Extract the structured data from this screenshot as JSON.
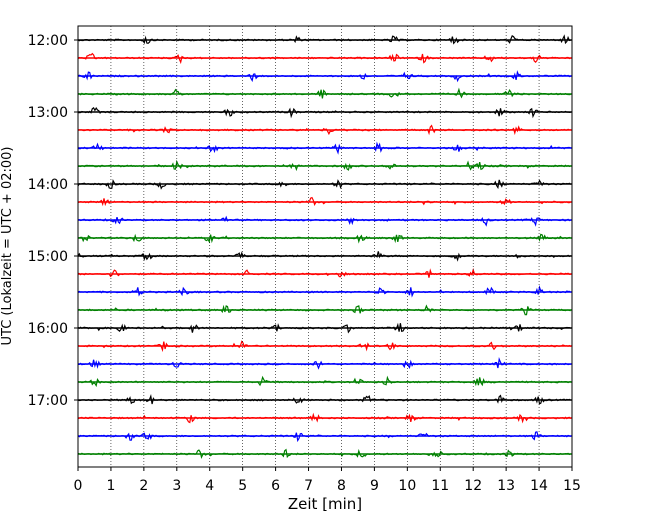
{
  "chart_data": {
    "type": "line",
    "title": "",
    "xlabel": "Zeit  [min]",
    "ylabel": "UTC (Lokalzeit = UTC + 02:00)",
    "xlim": [
      0,
      15
    ],
    "x_ticks": [
      "0",
      "1",
      "2",
      "3",
      "4",
      "5",
      "6",
      "7",
      "8",
      "9",
      "10",
      "11",
      "12",
      "13",
      "14",
      "15"
    ],
    "y_ticks": [
      "12:00",
      "13:00",
      "14:00",
      "15:00",
      "16:00",
      "17:00"
    ],
    "trace_interval_min": 15,
    "trace_start": "12:00",
    "trace_count": 24,
    "trace_colors": [
      "#000000",
      "#ff0000",
      "#0000ff",
      "#008000"
    ],
    "grid": "vertical dotted",
    "events": [
      {
        "trace": 0,
        "minutes": [
          2.1,
          6.6,
          9.6,
          11.4,
          13.2,
          14.8
        ]
      },
      {
        "trace": 1,
        "minutes": [
          0.4,
          3.1,
          9.6,
          10.5,
          12.5,
          13.9
        ]
      },
      {
        "trace": 2,
        "minutes": [
          0.3,
          5.3,
          8.6,
          10.0,
          11.5,
          13.3
        ]
      },
      {
        "trace": 3,
        "minutes": [
          3.0,
          7.4,
          9.6,
          11.6,
          13.1
        ]
      },
      {
        "trace": 4,
        "minutes": [
          0.5,
          4.6,
          6.5,
          12.8,
          13.8
        ]
      },
      {
        "trace": 5,
        "minutes": [
          2.7,
          7.6,
          10.7,
          13.3
        ]
      },
      {
        "trace": 6,
        "minutes": [
          0.6,
          4.1,
          7.9,
          9.1,
          11.5
        ]
      },
      {
        "trace": 7,
        "minutes": [
          3.0,
          6.6,
          8.2,
          9.5,
          11.9,
          12.2
        ]
      },
      {
        "trace": 8,
        "minutes": [
          1.0,
          2.5,
          6.2,
          7.9,
          12.8,
          14.0
        ]
      },
      {
        "trace": 9,
        "minutes": [
          0.8,
          7.1,
          10.6,
          13.0
        ]
      },
      {
        "trace": 10,
        "minutes": [
          1.2,
          4.4,
          8.3,
          12.4,
          13.9
        ]
      },
      {
        "trace": 11,
        "minutes": [
          0.2,
          1.8,
          4.0,
          8.6,
          9.7,
          14.1
        ]
      },
      {
        "trace": 12,
        "minutes": [
          2.1,
          4.9,
          9.1,
          11.5,
          13.4
        ]
      },
      {
        "trace": 13,
        "minutes": [
          1.1,
          5.1,
          8.0,
          10.7,
          12.0
        ]
      },
      {
        "trace": 14,
        "minutes": [
          1.8,
          3.2,
          9.2,
          10.1,
          12.5,
          14.0
        ]
      },
      {
        "trace": 15,
        "minutes": [
          4.5,
          8.5,
          10.6,
          13.6
        ]
      },
      {
        "trace": 16,
        "minutes": [
          1.3,
          3.5,
          6.0,
          8.2,
          9.8,
          13.4
        ]
      },
      {
        "trace": 17,
        "minutes": [
          2.6,
          5.0,
          8.7,
          9.5,
          12.6
        ]
      },
      {
        "trace": 18,
        "minutes": [
          0.5,
          3.0,
          7.3,
          10.0,
          12.8
        ]
      },
      {
        "trace": 19,
        "minutes": [
          0.5,
          5.6,
          8.5,
          9.4,
          12.2
        ]
      },
      {
        "trace": 20,
        "minutes": [
          1.6,
          2.2,
          6.7,
          8.8,
          12.8,
          14.0
        ]
      },
      {
        "trace": 21,
        "minutes": [
          3.4,
          7.2,
          10.1,
          13.5
        ]
      },
      {
        "trace": 22,
        "minutes": [
          1.6,
          2.1,
          6.7,
          10.5,
          13.9
        ]
      },
      {
        "trace": 23,
        "minutes": [
          3.7,
          6.3,
          8.6,
          10.9,
          13.1
        ]
      }
    ]
  }
}
